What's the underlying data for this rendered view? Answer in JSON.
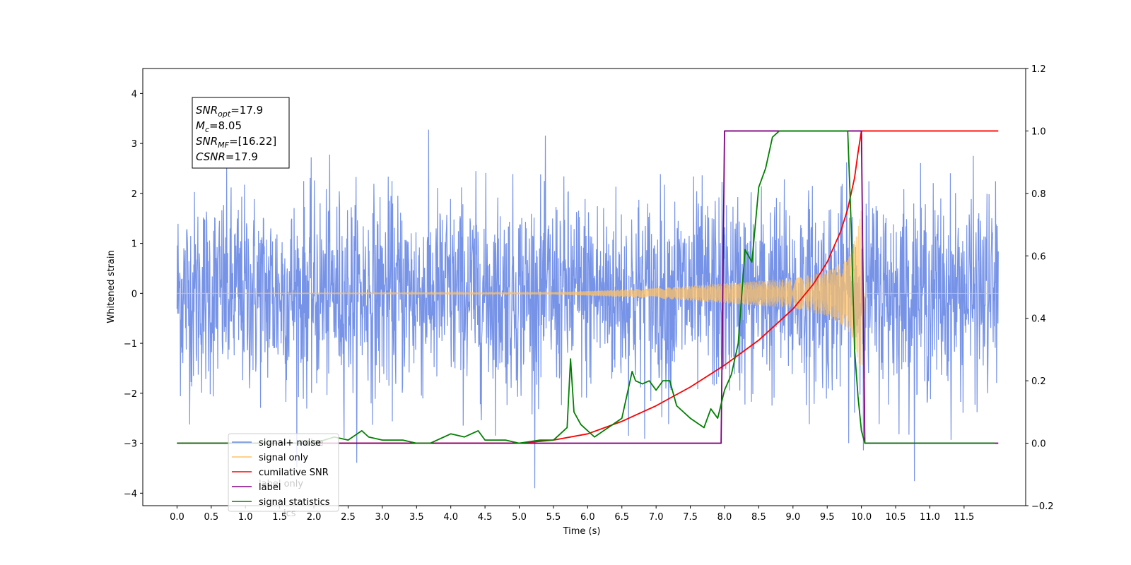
{
  "chart_data": {
    "type": "line",
    "xlabel": "Time (s)",
    "ylabel": "Whitened strain",
    "ylabel_right": "",
    "xlim": [
      -0.5,
      12.4
    ],
    "ylim": [
      -4.25,
      4.5
    ],
    "ylim_right": [
      -0.2,
      1.2
    ],
    "x_ticks": [
      0.0,
      0.5,
      1.0,
      1.5,
      2.0,
      2.5,
      3.0,
      3.5,
      4.0,
      4.5,
      5.0,
      5.5,
      6.0,
      6.5,
      7.0,
      7.5,
      8.0,
      8.5,
      9.0,
      9.5,
      10.0,
      10.5,
      11.0,
      11.5
    ],
    "x_tick_labels": [
      "0.0",
      "0.5",
      "1.0",
      "1.5",
      "2.0",
      "2.5",
      "3.0",
      "3.5",
      "4.0",
      "4.5",
      "5.0",
      "5.5",
      "6.0",
      "6.5",
      "7.0",
      "7.5",
      "8.0",
      "8.5",
      "9.0",
      "9.5",
      "10.0",
      "10.5",
      "11.0",
      "11.5"
    ],
    "y_ticks": [
      -4,
      -3,
      -2,
      -1,
      0,
      1,
      2,
      3,
      4
    ],
    "y_tick_labels": [
      "−4",
      "−3",
      "−2",
      "−1",
      "0",
      "1",
      "2",
      "3",
      "4"
    ],
    "y_ticks_right": [
      -0.2,
      0.0,
      0.2,
      0.4,
      0.6,
      0.8,
      1.0,
      1.2
    ],
    "y_tick_labels_right": [
      "−0.2",
      "0.0",
      "0.2",
      "0.4",
      "0.6",
      "0.8",
      "1.0",
      "1.2"
    ],
    "grid": false,
    "legend_position": "lower-left",
    "series": [
      {
        "name": "signal+ noise",
        "color": "#6f8de6",
        "axis": "left",
        "kind": "noise",
        "x_range": [
          0.0,
          12.0
        ],
        "approx_std": 1.0,
        "approx_range": [
          -3.9,
          4.2
        ]
      },
      {
        "name": "signal only",
        "color": "#ffc266",
        "axis": "left",
        "kind": "chirp",
        "x_range": [
          0.0,
          12.0
        ],
        "merger_time": 10.0,
        "peak_amplitude": 1.7,
        "envelope": {
          "x": [
            0.0,
            5.5,
            7.0,
            8.0,
            9.0,
            9.5,
            9.8,
            9.95,
            10.0,
            10.05,
            12.0
          ],
          "y": [
            0.0,
            0.02,
            0.1,
            0.2,
            0.3,
            0.45,
            0.7,
            1.3,
            1.7,
            0.0,
            0.0
          ]
        }
      },
      {
        "name": "cumilative SNR",
        "color": "#ff0000",
        "axis": "right",
        "x": [
          0.0,
          5.0,
          5.5,
          6.0,
          6.5,
          7.0,
          7.5,
          8.0,
          8.5,
          9.0,
          9.3,
          9.5,
          9.7,
          9.8,
          9.9,
          9.95,
          10.0,
          10.01,
          12.0
        ],
        "y": [
          0.0,
          0.0,
          0.01,
          0.03,
          0.07,
          0.12,
          0.18,
          0.25,
          0.33,
          0.43,
          0.51,
          0.58,
          0.68,
          0.75,
          0.85,
          0.93,
          1.0,
          1.0,
          1.0
        ]
      },
      {
        "name": "label",
        "color": "#800080",
        "axis": "right",
        "x": [
          0.0,
          7.95,
          8.0,
          10.0,
          10.05,
          12.0
        ],
        "y": [
          0.0,
          0.0,
          1.0,
          1.0,
          0.0,
          0.0
        ]
      },
      {
        "name": "signal statistics",
        "color": "#008000",
        "axis": "right",
        "x": [
          0.0,
          2.0,
          2.3,
          2.5,
          2.7,
          2.8,
          3.0,
          3.3,
          3.5,
          3.7,
          4.0,
          4.2,
          4.4,
          4.5,
          4.8,
          5.0,
          5.3,
          5.5,
          5.7,
          5.75,
          5.8,
          5.9,
          6.1,
          6.3,
          6.5,
          6.65,
          6.7,
          6.8,
          6.9,
          7.0,
          7.1,
          7.2,
          7.3,
          7.5,
          7.7,
          7.8,
          7.9,
          8.0,
          8.1,
          8.2,
          8.3,
          8.4,
          8.5,
          8.6,
          8.7,
          8.8,
          9.0,
          9.8,
          9.85,
          9.9,
          9.95,
          10.0,
          10.05,
          11.95
        ],
        "y": [
          0.0,
          0.0,
          0.02,
          0.01,
          0.04,
          0.02,
          0.01,
          0.01,
          0.0,
          0.0,
          0.03,
          0.02,
          0.04,
          0.01,
          0.01,
          0.0,
          0.01,
          0.01,
          0.05,
          0.27,
          0.1,
          0.06,
          0.02,
          0.05,
          0.08,
          0.23,
          0.2,
          0.19,
          0.2,
          0.17,
          0.2,
          0.2,
          0.12,
          0.08,
          0.05,
          0.11,
          0.08,
          0.17,
          0.22,
          0.32,
          0.62,
          0.58,
          0.82,
          0.88,
          0.98,
          1.0,
          1.0,
          1.0,
          0.7,
          0.3,
          0.15,
          0.04,
          0.0,
          0.0
        ]
      }
    ],
    "annotation": {
      "lines": [
        {
          "base": "SNR",
          "sub": "opt",
          "value": "=17.9"
        },
        {
          "base": "M",
          "sub": "c",
          "value": "=8.05"
        },
        {
          "base": "SNR",
          "sub": "MF",
          "value": "=[16.22]"
        },
        {
          "base": "CSNR",
          "sub": "",
          "value": "=17.9"
        }
      ]
    },
    "legend_overlap_text": [
      "noise",
      "label only",
      "ics"
    ]
  }
}
